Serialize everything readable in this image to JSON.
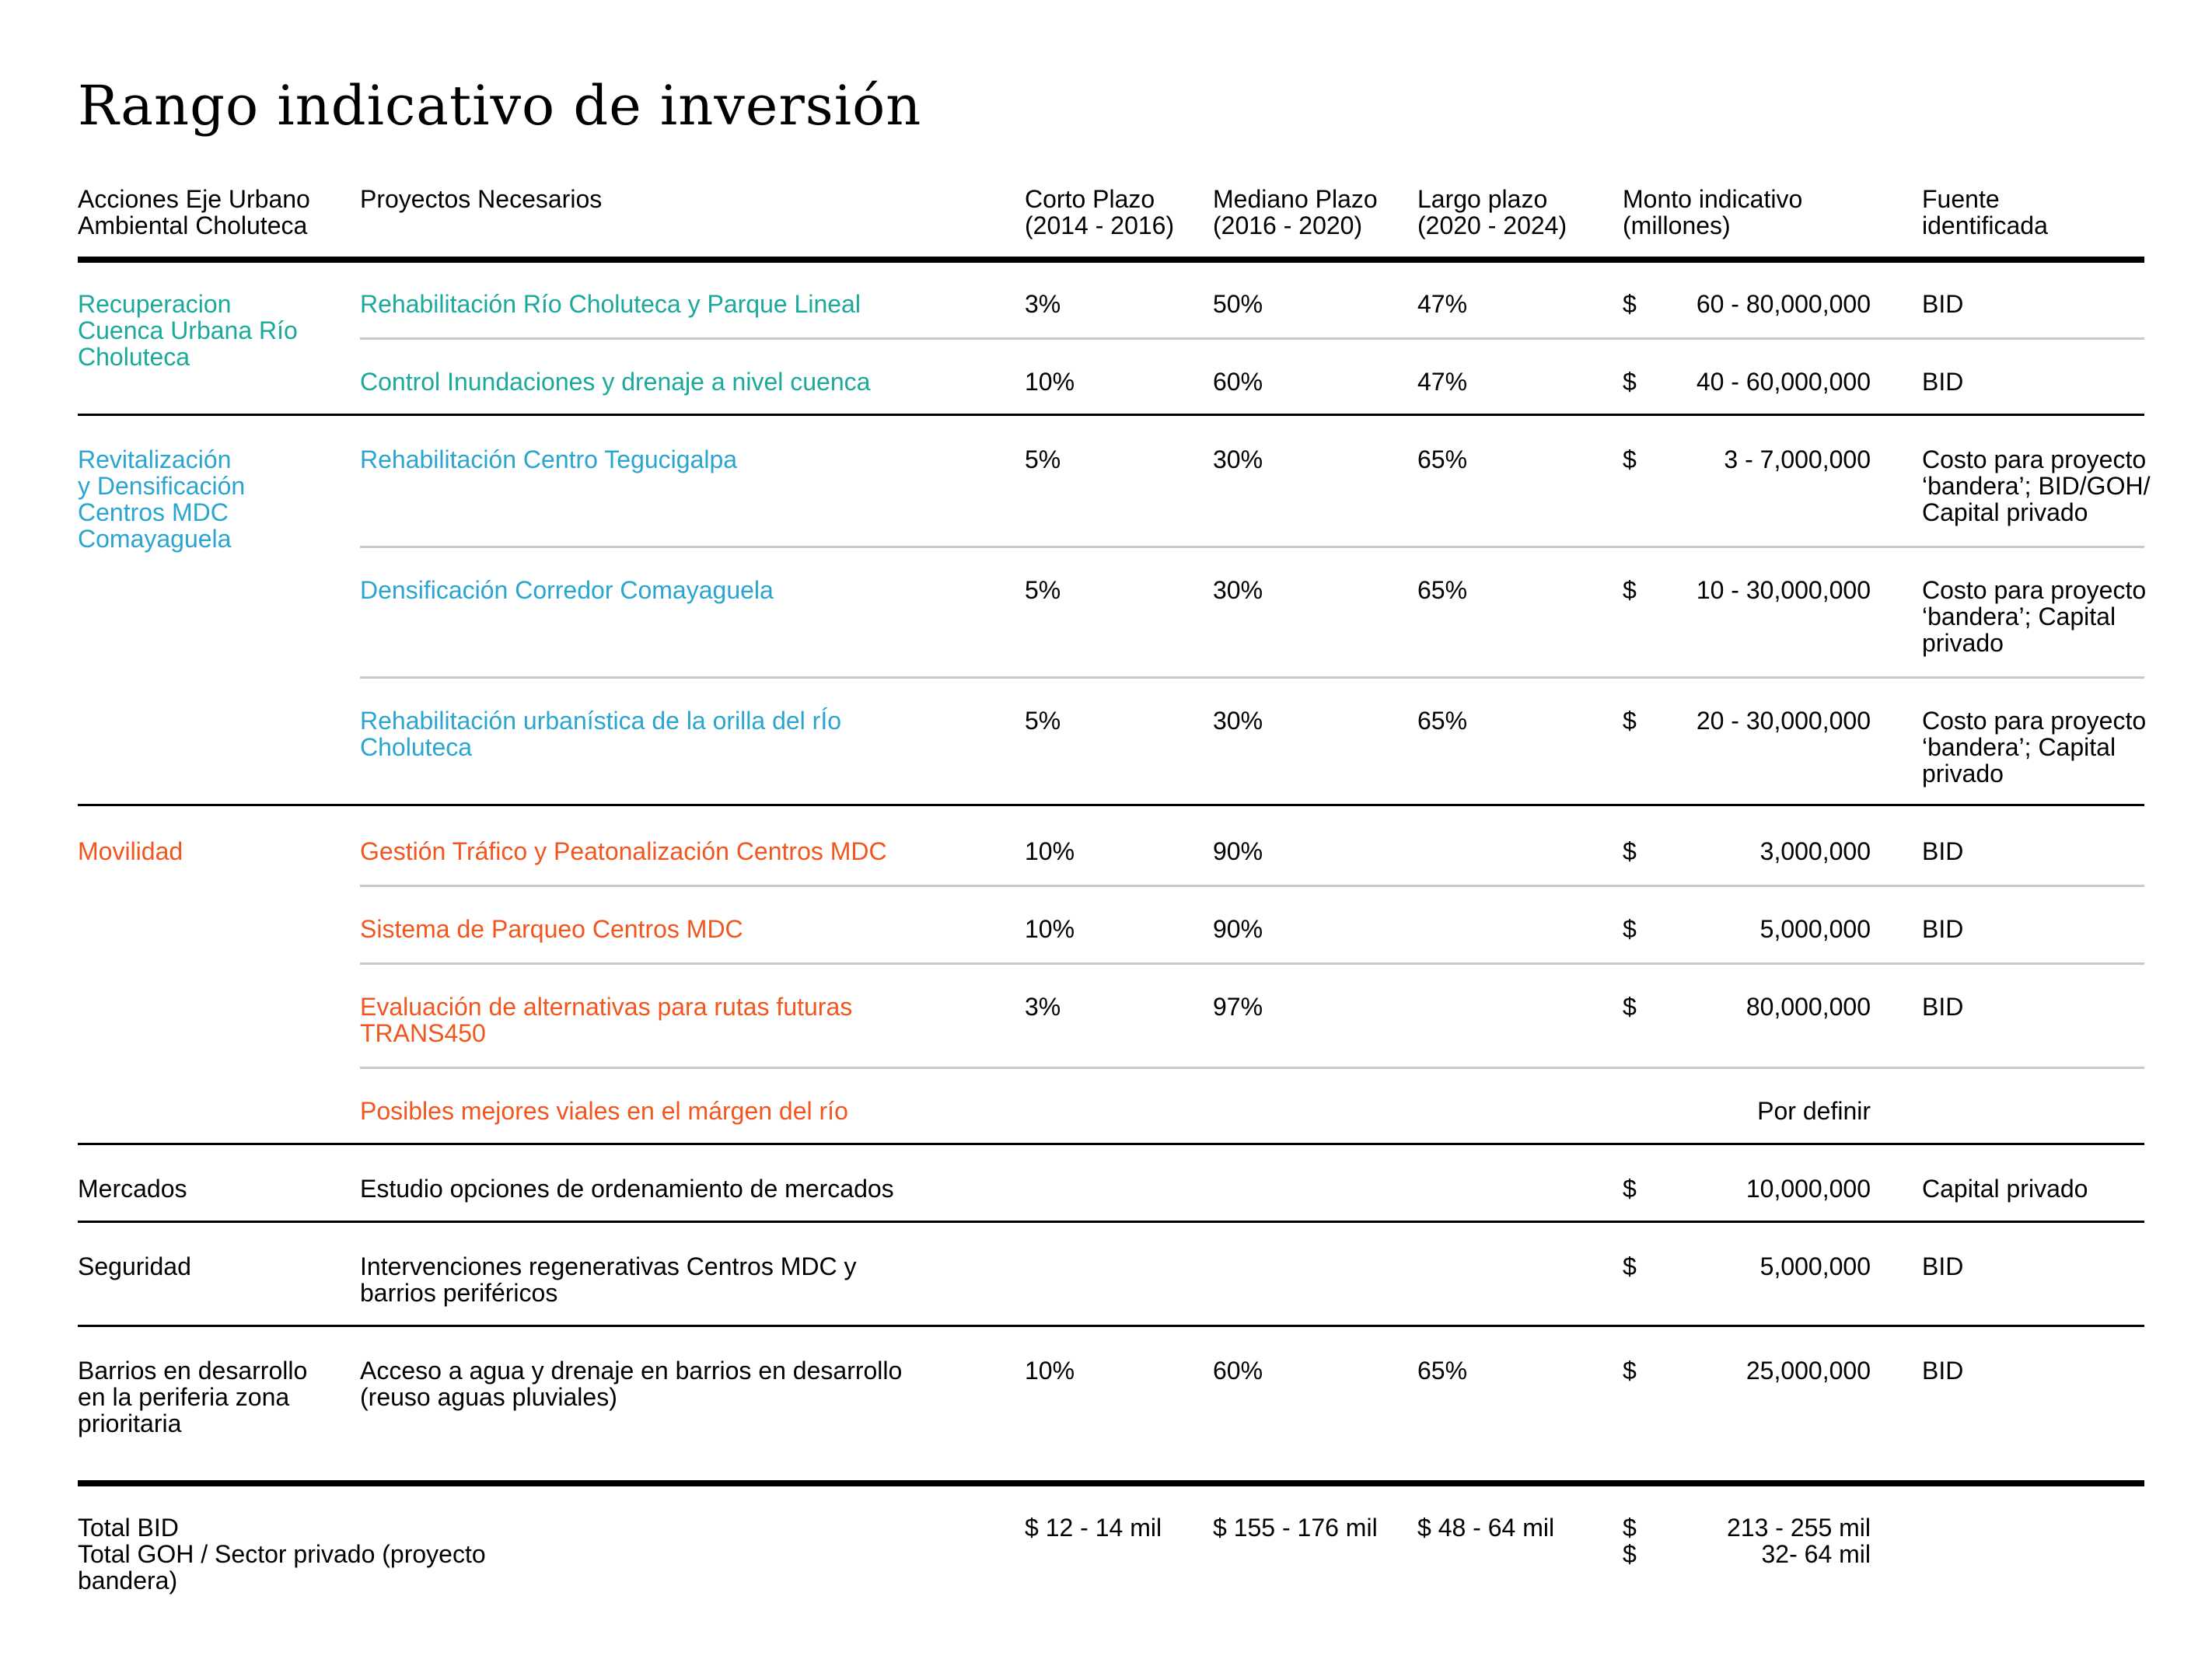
{
  "title": "Rango indicativo de inversión",
  "colors": {
    "teal": "#1aa99a",
    "blue": "#2aa5cf",
    "orange": "#f0561e",
    "divider": "#c9c9c9"
  },
  "headers": {
    "acciones": "Acciones Eje Urbano\nAmbiental Choluteca",
    "proyectos": "Proyectos Necesarios",
    "corto": "Corto Plazo\n(2014 - 2016)",
    "mediano": "Mediano Plazo\n(2016 - 2020)",
    "largo": "Largo plazo\n(2020 - 2024)",
    "monto": "Monto indicativo\n(millones)",
    "fuente": "Fuente\nidentificada"
  },
  "groups": [
    {
      "name": "Recuperacion\nCuenca Urbana Río\nCholuteca",
      "color": "teal",
      "rows": [
        {
          "project": "Rehabilitación Río Choluteca y Parque Lineal",
          "corto": "3%",
          "mediano": "50%",
          "largo": "47%",
          "currency": "$",
          "amount": "60 - 80,000,000",
          "source": "BID"
        },
        {
          "project": "Control Inundaciones y drenaje a nivel cuenca",
          "corto": "10%",
          "mediano": "60%",
          "largo": "47%",
          "currency": "$",
          "amount": "40 - 60,000,000",
          "source": "BID"
        }
      ]
    },
    {
      "name": "Revitalización\ny Densificación\nCentros MDC\nComayaguela",
      "color": "blue",
      "rows": [
        {
          "project": "Rehabilitación Centro Tegucigalpa",
          "corto": "5%",
          "mediano": "30%",
          "largo": "65%",
          "currency": "$",
          "amount": "3 - 7,000,000",
          "source": "Costo para proyecto\n‘bandera’; BID/GOH/\nCapital privado"
        },
        {
          "project": "Densificación Corredor Comayaguela",
          "corto": "5%",
          "mediano": "30%",
          "largo": "65%",
          "currency": "$",
          "amount": "10 - 30,000,000",
          "source": "Costo para proyecto\n‘bandera’; Capital\nprivado"
        },
        {
          "project": "Rehabilitación urbanística de la orilla del rÍo\nCholuteca",
          "corto": "5%",
          "mediano": "30%",
          "largo": "65%",
          "currency": "$",
          "amount": "20 - 30,000,000",
          "source": "Costo para proyecto\n‘bandera’; Capital\nprivado"
        }
      ]
    },
    {
      "name": "Movilidad",
      "color": "orange",
      "rows": [
        {
          "project": "Gestión Tráfico y Peatonalización Centros MDC",
          "corto": "10%",
          "mediano": "90%",
          "largo": "",
          "currency": "$",
          "amount": "3,000,000",
          "source": "BID"
        },
        {
          "project": "Sistema de Parqueo Centros MDC",
          "corto": "10%",
          "mediano": "90%",
          "largo": "",
          "currency": "$",
          "amount": "5,000,000",
          "source": "BID"
        },
        {
          "project": "Evaluación de alternativas para rutas futuras\nTRANS450",
          "corto": "3%",
          "mediano": "97%",
          "largo": "",
          "currency": "$",
          "amount": "80,000,000",
          "source": "BID"
        },
        {
          "project": "Posibles mejores viales en el márgen del río",
          "corto": "",
          "mediano": "",
          "largo": "",
          "currency": "",
          "amount": "Por definir",
          "source": ""
        }
      ]
    },
    {
      "name": "Mercados",
      "color": "black",
      "rows": [
        {
          "project": "Estudio opciones de ordenamiento de mercados",
          "corto": "",
          "mediano": "",
          "largo": "",
          "currency": "$",
          "amount": "10,000,000",
          "source": "Capital privado"
        }
      ]
    },
    {
      "name": "Seguridad",
      "color": "black",
      "rows": [
        {
          "project": "Intervenciones regenerativas Centros MDC y\nbarrios periféricos",
          "corto": "",
          "mediano": "",
          "largo": "",
          "currency": "$",
          "amount": "5,000,000",
          "source": "BID"
        }
      ]
    },
    {
      "name": "Barrios en desarrollo\nen la periferia zona\nprioritaria",
      "color": "black",
      "rows": [
        {
          "project": "Acceso a agua y drenaje en barrios en desarrollo\n(reuso aguas pluviales)",
          "corto": "10%",
          "mediano": "60%",
          "largo": "65%",
          "currency": "$",
          "amount": "25,000,000",
          "source": "BID"
        }
      ]
    }
  ],
  "totals": {
    "label": "Total BID\nTotal GOH / Sector privado (proyecto\nbandera)",
    "corto": "$  12 - 14 mil",
    "mediano": "$  155 - 176 mil",
    "largo": "$  48 - 64 mil",
    "currency": "$\n$",
    "amount": "213 - 255 mil\n32- 64 mil"
  }
}
